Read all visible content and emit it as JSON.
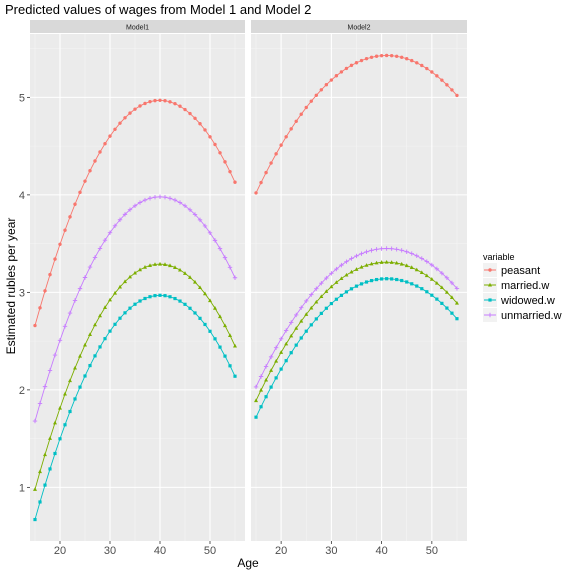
{
  "chart_data": {
    "type": "line",
    "title": "Predicted values of wages from Model 1 and Model 2",
    "xlabel": "Age",
    "ylabel": "Estimated rubles per year",
    "xlim": [
      14,
      57
    ],
    "ylim": [
      0.45,
      5.65
    ],
    "x_ticks": [
      20,
      30,
      40,
      50
    ],
    "y_ticks": [
      1,
      2,
      3,
      4,
      5
    ],
    "grid": true,
    "legend": {
      "title": "variable",
      "placement": "right",
      "items": [
        "peasant",
        "married.w",
        "widowed.w",
        "unmarried.w"
      ]
    },
    "series_colors": {
      "peasant": "#F8766D",
      "married.w": "#7CAE00",
      "widowed.w": "#00BFC4",
      "unmarried.w": "#C77CFF"
    },
    "panels": [
      {
        "label": "Model1",
        "x_range": [
          15,
          55
        ],
        "series": [
          {
            "name": "peasant",
            "peak_x": 40,
            "y_at_15": 2.66,
            "y_at_peak": 4.97,
            "y_at_55": 4.13
          },
          {
            "name": "unmarried.w",
            "peak_x": 40,
            "y_at_15": 1.68,
            "y_at_peak": 3.98,
            "y_at_55": 3.15
          },
          {
            "name": "married.w",
            "peak_x": 40,
            "y_at_15": 0.98,
            "y_at_peak": 3.29,
            "y_at_55": 2.45
          },
          {
            "name": "widowed.w",
            "peak_x": 40,
            "y_at_15": 0.67,
            "y_at_peak": 2.97,
            "y_at_55": 2.14
          }
        ]
      },
      {
        "label": "Model2",
        "x_range": [
          15,
          55
        ],
        "series": [
          {
            "name": "peasant",
            "peak_x": 41,
            "y_at_15": 4.02,
            "y_at_peak": 5.43,
            "y_at_55": 5.02
          },
          {
            "name": "unmarried.w",
            "peak_x": 41,
            "y_at_15": 2.03,
            "y_at_peak": 3.45,
            "y_at_55": 3.04
          },
          {
            "name": "married.w",
            "peak_x": 41,
            "y_at_15": 1.89,
            "y_at_peak": 3.31,
            "y_at_55": 2.89
          },
          {
            "name": "widowed.w",
            "peak_x": 41,
            "y_at_15": 1.72,
            "y_at_peak": 3.14,
            "y_at_55": 2.73
          }
        ]
      }
    ]
  }
}
